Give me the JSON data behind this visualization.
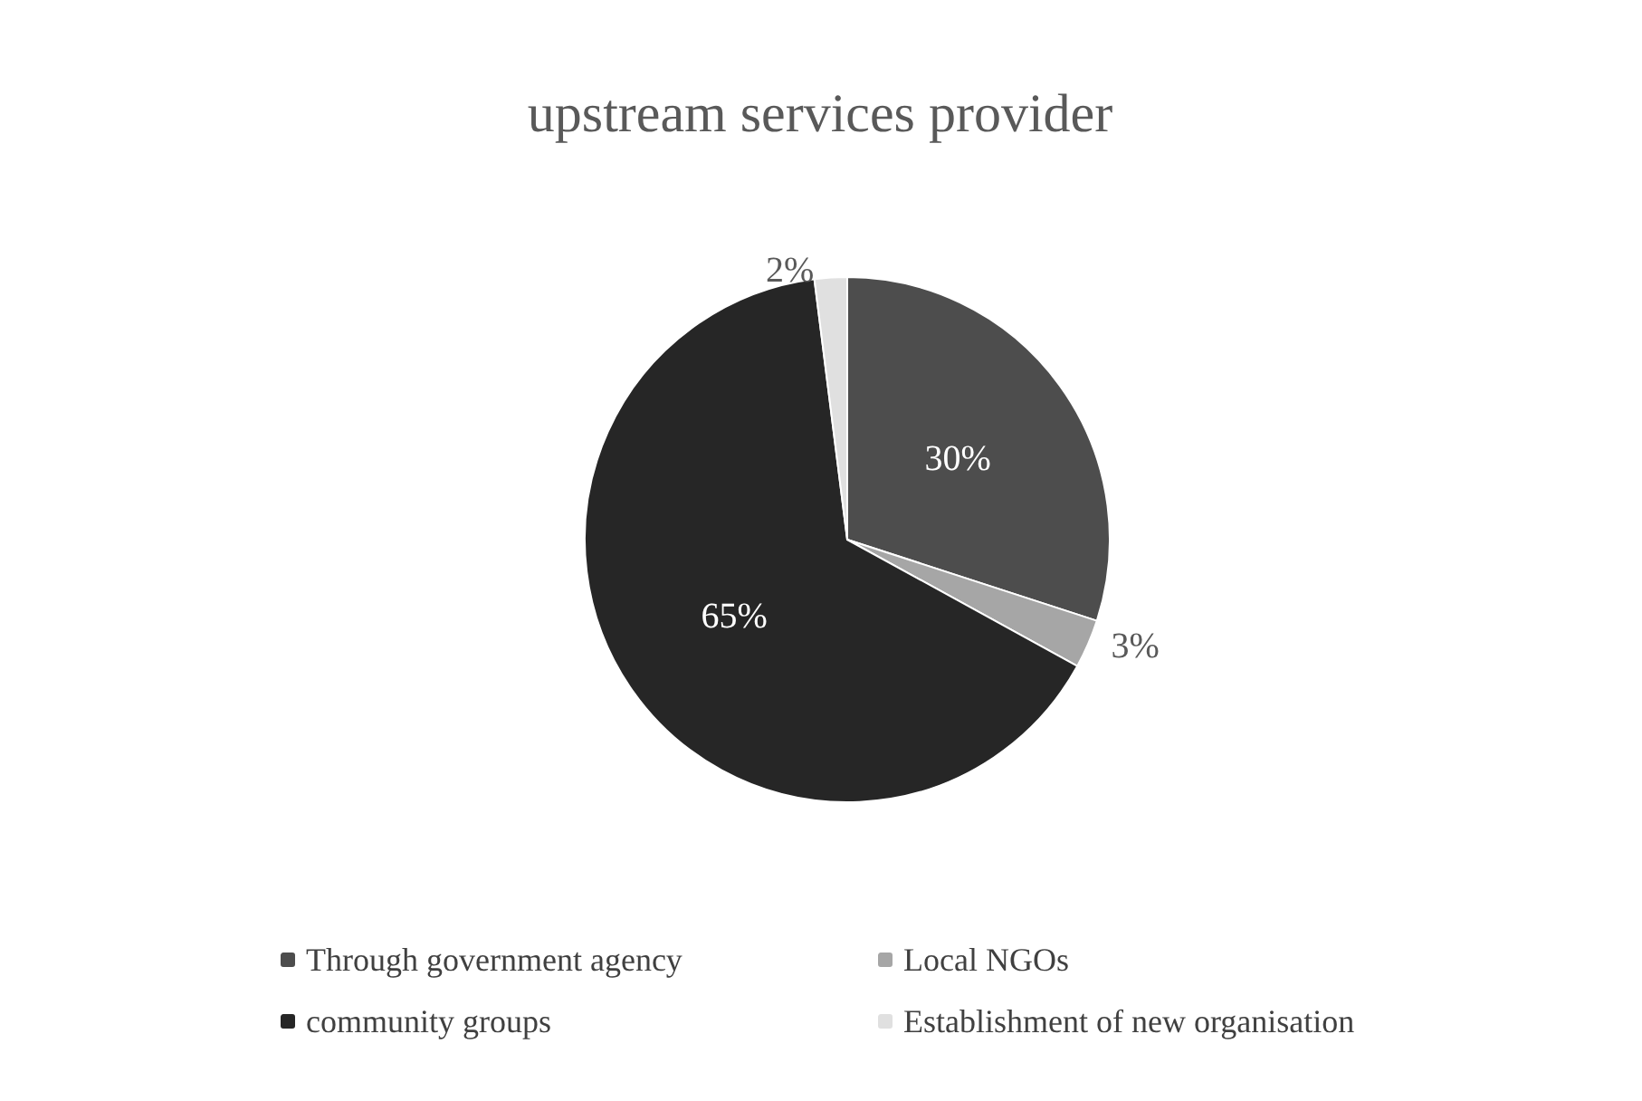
{
  "chart_data": {
    "type": "pie",
    "title": "upstream services provider",
    "categories": [
      "Through government agency",
      "Local NGOs",
      "community groups",
      "Establishment of new organisation"
    ],
    "values": [
      30,
      3,
      65,
      2
    ],
    "colors": [
      "#4d4d4d",
      "#a6a6a6",
      "#262626",
      "#e0e0e0"
    ],
    "value_labels": [
      "30%",
      "3%",
      "65%",
      "2%"
    ],
    "legend": "bottom"
  }
}
